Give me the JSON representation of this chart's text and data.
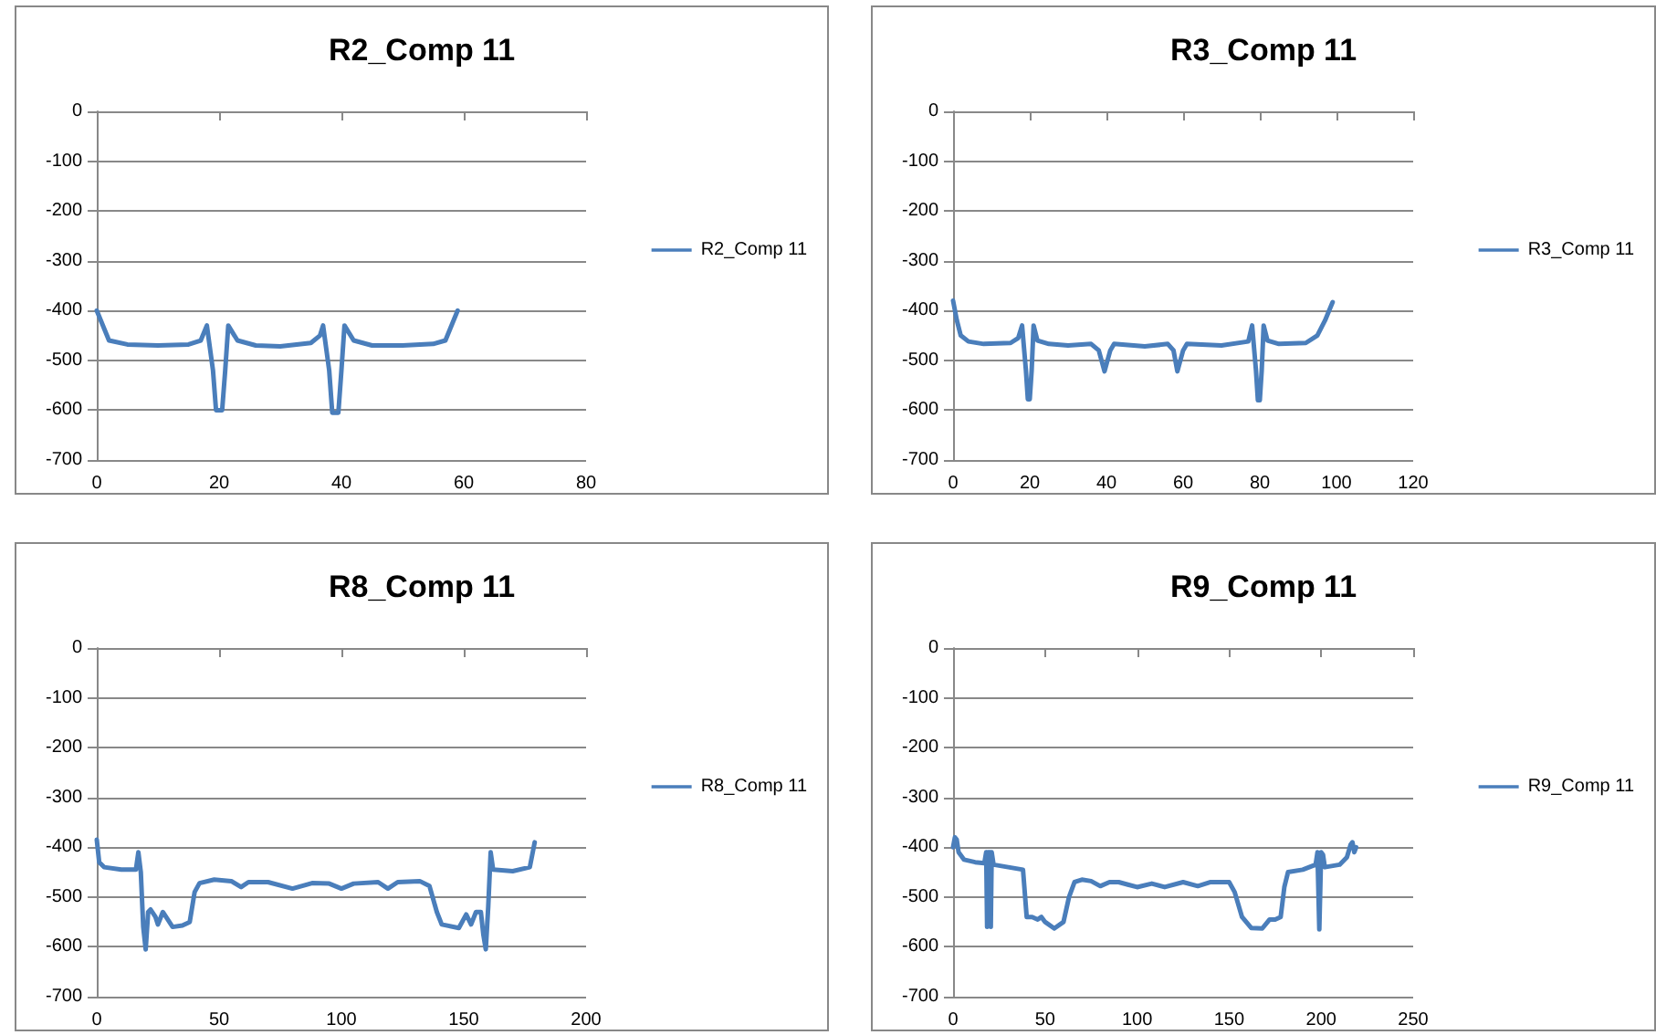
{
  "chart_data": [
    {
      "type": "line",
      "title": "R2_Comp 11",
      "xlim": [
        0,
        80
      ],
      "xticks": [
        0,
        20,
        40,
        60,
        80
      ],
      "ylim": [
        -700,
        0
      ],
      "yticks": [
        -700,
        -600,
        -500,
        -400,
        -300,
        -200,
        -100,
        0
      ],
      "grid": "y",
      "legend": "right",
      "series": [
        {
          "name": "R2_Comp 11",
          "color": "#4a7ebb",
          "x": [
            0,
            2,
            5,
            10,
            15,
            17,
            18,
            19,
            19.5,
            20.5,
            21,
            21.5,
            23,
            26,
            30,
            35,
            36.5,
            37,
            38,
            38.5,
            39.5,
            40,
            40.5,
            42,
            45,
            50,
            55,
            57,
            59
          ],
          "values": [
            -400,
            -460,
            -468,
            -470,
            -468,
            -460,
            -430,
            -520,
            -600,
            -600,
            -520,
            -430,
            -460,
            -470,
            -472,
            -465,
            -450,
            -430,
            -520,
            -605,
            -605,
            -520,
            -430,
            -460,
            -470,
            -470,
            -467,
            -460,
            -400
          ]
        }
      ]
    },
    {
      "type": "line",
      "title": "R3_Comp 11",
      "xlim": [
        0,
        120
      ],
      "xticks": [
        0,
        20,
        40,
        60,
        80,
        100,
        120
      ],
      "ylim": [
        -700,
        0
      ],
      "yticks": [
        -700,
        -600,
        -500,
        -400,
        -300,
        -200,
        -100,
        0
      ],
      "grid": "y",
      "legend": "right",
      "series": [
        {
          "name": "R3_Comp 11",
          "color": "#4a7ebb",
          "x": [
            0,
            1,
            2,
            4,
            8,
            15,
            17,
            18,
            19,
            19.5,
            20,
            20.5,
            21,
            22,
            25,
            30,
            36,
            38,
            39.5,
            41,
            42,
            50,
            56,
            57.5,
            58.5,
            60,
            61,
            70,
            77,
            78,
            79,
            79.5,
            80,
            80.5,
            81,
            82,
            85,
            92,
            95,
            97,
            99
          ],
          "values": [
            -380,
            -420,
            -450,
            -462,
            -467,
            -465,
            -455,
            -430,
            -520,
            -578,
            -578,
            -520,
            -430,
            -460,
            -467,
            -470,
            -467,
            -480,
            -522,
            -480,
            -467,
            -472,
            -467,
            -480,
            -522,
            -480,
            -467,
            -470,
            -462,
            -430,
            -520,
            -580,
            -580,
            -520,
            -430,
            -460,
            -467,
            -465,
            -450,
            -420,
            -383
          ]
        }
      ]
    },
    {
      "type": "line",
      "title": "R8_Comp 11",
      "xlim": [
        0,
        200
      ],
      "xticks": [
        0,
        50,
        100,
        150,
        200
      ],
      "ylim": [
        -700,
        0
      ],
      "yticks": [
        -700,
        -600,
        -500,
        -400,
        -300,
        -200,
        -100,
        0
      ],
      "grid": "y",
      "legend": "right",
      "series": [
        {
          "name": "R8_Comp 11",
          "color": "#4a7ebb",
          "x": [
            0,
            1,
            3,
            10,
            16,
            17,
            18,
            19,
            20,
            21,
            22,
            24,
            25,
            27,
            29,
            31,
            35,
            38,
            40,
            42,
            48,
            55,
            59,
            62,
            70,
            80,
            88,
            95,
            100,
            105,
            115,
            119,
            123,
            132,
            136,
            139,
            141,
            148,
            151,
            153,
            155,
            157,
            158,
            159,
            160,
            161,
            162,
            170,
            177,
            179
          ],
          "values": [
            -385,
            -430,
            -440,
            -445,
            -445,
            -410,
            -450,
            -560,
            -605,
            -530,
            -525,
            -540,
            -555,
            -530,
            -545,
            -560,
            -557,
            -550,
            -490,
            -472,
            -465,
            -468,
            -480,
            -470,
            -470,
            -483,
            -472,
            -473,
            -483,
            -473,
            -470,
            -483,
            -470,
            -468,
            -478,
            -530,
            -555,
            -562,
            -535,
            -555,
            -530,
            -530,
            -575,
            -605,
            -520,
            -410,
            -445,
            -448,
            -440,
            -390
          ]
        }
      ]
    },
    {
      "type": "line",
      "title": "R9_Comp 11",
      "xlim": [
        0,
        250
      ],
      "xticks": [
        0,
        50,
        100,
        150,
        200,
        250
      ],
      "ylim": [
        -700,
        0
      ],
      "yticks": [
        -700,
        -600,
        -500,
        -400,
        -300,
        -200,
        -100,
        0
      ],
      "grid": "y",
      "legend": "right",
      "series": [
        {
          "name": "R9_Comp 11",
          "color": "#4a7ebb",
          "x": [
            0,
            1,
            2,
            3,
            6,
            12,
            17,
            18,
            18.5,
            19,
            20,
            20.5,
            21,
            22,
            30,
            38,
            40,
            43,
            46,
            48,
            50,
            55,
            60,
            63,
            66,
            70,
            75,
            80,
            85,
            90,
            95,
            100,
            108,
            115,
            125,
            133,
            140,
            150,
            153,
            157,
            162,
            168,
            172,
            175,
            178,
            180,
            182,
            190,
            197,
            198,
            199,
            200,
            201,
            202,
            210,
            214,
            216,
            217,
            218,
            219
          ],
          "values": [
            -400,
            -380,
            -385,
            -410,
            -425,
            -430,
            -432,
            -410,
            -560,
            -410,
            -410,
            -560,
            -410,
            -435,
            -440,
            -445,
            -540,
            -540,
            -545,
            -540,
            -550,
            -563,
            -550,
            -500,
            -470,
            -465,
            -468,
            -478,
            -470,
            -470,
            -475,
            -480,
            -473,
            -480,
            -470,
            -478,
            -470,
            -470,
            -490,
            -540,
            -562,
            -563,
            -545,
            -545,
            -540,
            -480,
            -450,
            -445,
            -435,
            -410,
            -565,
            -410,
            -415,
            -440,
            -435,
            -420,
            -395,
            -390,
            -410,
            -400
          ]
        }
      ]
    }
  ]
}
